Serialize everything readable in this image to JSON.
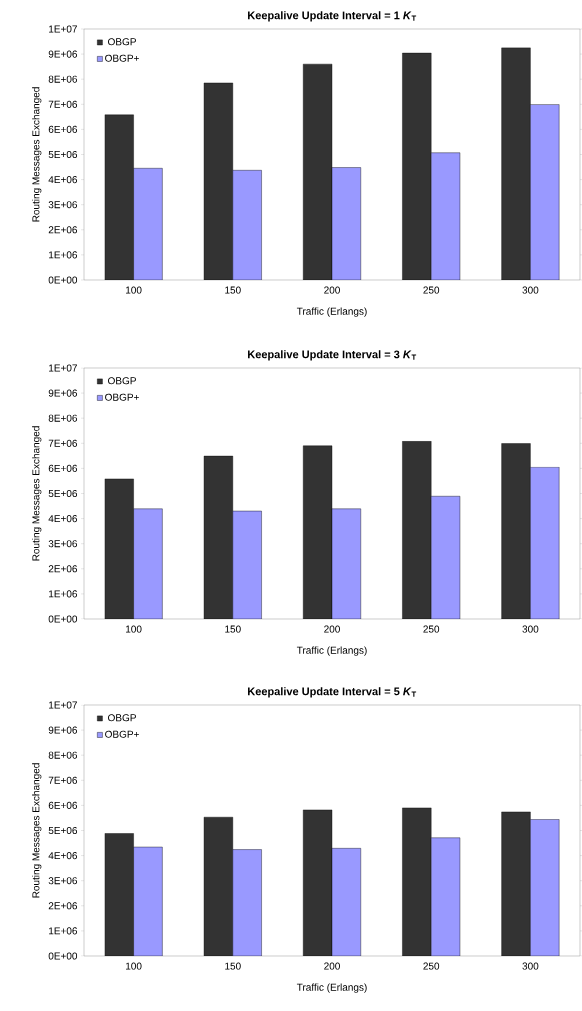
{
  "chart_data": [
    {
      "type": "bar",
      "title": "Keepalive Update Interval = 1 *K*$_{T}$",
      "xlabel": "Traffic (Erlangs)",
      "ylabel": "Routing Messages Exchanged",
      "categories": [
        "100",
        "150",
        "200",
        "250",
        "300"
      ],
      "legend": "top left",
      "ylim": [
        0,
        10000000
      ],
      "yticks": [
        {
          "value": 0,
          "label": "0E+00"
        },
        {
          "value": 1000000,
          "label": "1E+06"
        },
        {
          "value": 2000000,
          "label": "2E+06"
        },
        {
          "value": 3000000,
          "label": "3E+06"
        },
        {
          "value": 4000000,
          "label": "4E+06"
        },
        {
          "value": 5000000,
          "label": "5E+06"
        },
        {
          "value": 6000000,
          "label": "6E+06"
        },
        {
          "value": 7000000,
          "label": "7E+06"
        },
        {
          "value": 8000000,
          "label": "8E+06"
        },
        {
          "value": 9000000,
          "label": "9E+06"
        },
        {
          "value": 10000000,
          "label": "1E+07"
        }
      ],
      "series": [
        {
          "name": "OBGP",
          "color": "#333333",
          "values": [
            6580000,
            7850000,
            8600000,
            9040000,
            9250000
          ]
        },
        {
          "name": "OBGP+",
          "color": "#9999ff",
          "values": [
            4450000,
            4370000,
            4480000,
            5070000,
            6990000
          ]
        }
      ]
    },
    {
      "type": "bar",
      "title": "Keepalive Update Interval = 3 *K*$_{T}$",
      "xlabel": "Traffic (Erlangs)",
      "ylabel": "Routing Messages Exchanged",
      "categories": [
        "100",
        "150",
        "200",
        "250",
        "300"
      ],
      "legend": "top left",
      "ylim": [
        0,
        10000000
      ],
      "yticks": [
        {
          "value": 0,
          "label": "0E+00"
        },
        {
          "value": 1000000,
          "label": "1E+06"
        },
        {
          "value": 2000000,
          "label": "2E+06"
        },
        {
          "value": 3000000,
          "label": "3E+06"
        },
        {
          "value": 4000000,
          "label": "4E+06"
        },
        {
          "value": 5000000,
          "label": "5E+06"
        },
        {
          "value": 6000000,
          "label": "6E+06"
        },
        {
          "value": 7000000,
          "label": "7E+06"
        },
        {
          "value": 8000000,
          "label": "8E+06"
        },
        {
          "value": 9000000,
          "label": "9E+06"
        },
        {
          "value": 10000000,
          "label": "1E+07"
        }
      ],
      "series": [
        {
          "name": "OBGP",
          "color": "#333333",
          "values": [
            5580000,
            6490000,
            6900000,
            7080000,
            6990000
          ]
        },
        {
          "name": "OBGP+",
          "color": "#9999ff",
          "values": [
            4390000,
            4300000,
            4390000,
            4890000,
            6050000
          ]
        }
      ]
    },
    {
      "type": "bar",
      "title": "Keepalive Update Interval = 5 *K*$_{T}$",
      "xlabel": "Traffic (Erlangs)",
      "ylabel": "Routing Messages Exchanged",
      "categories": [
        "100",
        "150",
        "200",
        "250",
        "300"
      ],
      "legend": "top left",
      "ylim": [
        0,
        10000000
      ],
      "yticks": [
        {
          "value": 0,
          "label": "0E+00"
        },
        {
          "value": 1000000,
          "label": "1E+06"
        },
        {
          "value": 2000000,
          "label": "2E+06"
        },
        {
          "value": 3000000,
          "label": "3E+06"
        },
        {
          "value": 4000000,
          "label": "4E+06"
        },
        {
          "value": 5000000,
          "label": "5E+06"
        },
        {
          "value": 6000000,
          "label": "6E+06"
        },
        {
          "value": 7000000,
          "label": "7E+06"
        },
        {
          "value": 8000000,
          "label": "8E+06"
        },
        {
          "value": 9000000,
          "label": "9E+06"
        },
        {
          "value": 10000000,
          "label": "1E+07"
        }
      ],
      "series": [
        {
          "name": "OBGP",
          "color": "#333333",
          "values": [
            4880000,
            5530000,
            5820000,
            5900000,
            5740000
          ]
        },
        {
          "name": "OBGP+",
          "color": "#9999ff",
          "values": [
            4340000,
            4240000,
            4290000,
            4710000,
            5440000
          ]
        }
      ]
    }
  ]
}
